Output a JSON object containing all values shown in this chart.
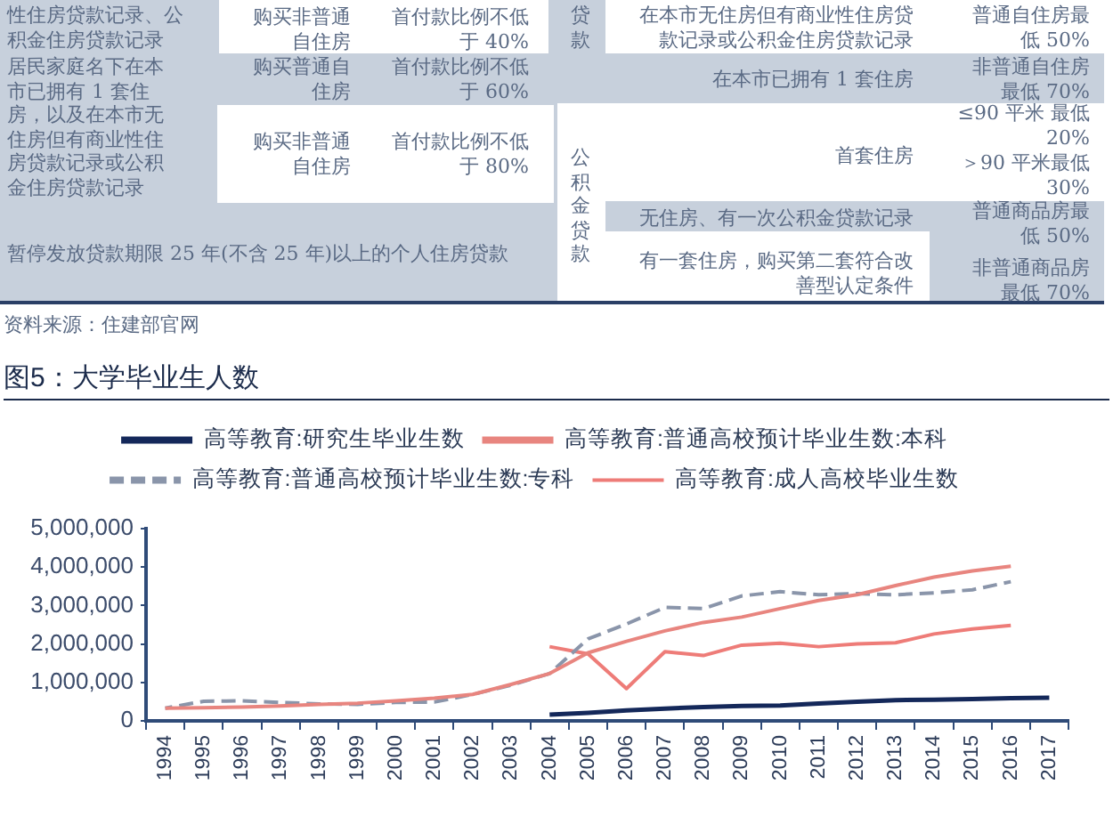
{
  "chart_data": [
    {
      "type": "other",
      "annotations": [
        "性住房贷款记录、公积金住房贷款记录",
        "购买非普通自住房",
        "首付款比例不低于 40%",
        "居民家庭名下在本市已拥有 1 套住房，以及在本市无住房但有商业性住房贷款记录或公积金住房贷款记录",
        "购买普通自住房",
        "首付款比例不低于 60%",
        "购买非普通自住房",
        "首付款比例不低于 80%",
        "暂停发放贷款期限 25 年(不含 25 年)以上的个人住房贷款",
        "贷款",
        "在本市无住房但有商业性住房贷款记录或公积金住房贷款记录",
        "普通自住房最低 50%",
        "在本市已拥有 1 套住房",
        "非普通自住房最低 70%",
        "公积金贷款",
        "首套住房",
        "≤90 平米 最低 20%",
        "＞90 平米最低 30%",
        "无住房、有一次公积金贷款记录",
        "普通商品房最低 50%",
        "有一套住房，购买第二套符合改善型认定条件",
        "非普通商品房最低 70%",
        "资料来源：住建部官网"
      ]
    },
    {
      "type": "line",
      "title": "图5：大学毕业生人数",
      "categories": [
        "1994",
        "1995",
        "1996",
        "1997",
        "1998",
        "1999",
        "2000",
        "2001",
        "2002",
        "2003",
        "2004",
        "2005",
        "2006",
        "2007",
        "2008",
        "2009",
        "2010",
        "2011",
        "2012",
        "2013",
        "2014",
        "2015",
        "2016",
        "2017"
      ],
      "series": [
        {
          "name": "高等教育:研究生毕业生数",
          "color": "#14285a",
          "values": [
            null,
            null,
            null,
            null,
            null,
            null,
            null,
            null,
            null,
            null,
            160000,
            210000,
            270000,
            320000,
            360000,
            390000,
            400000,
            450000,
            500000,
            540000,
            550000,
            570000,
            590000,
            600000
          ]
        },
        {
          "name": "高等教育:普通高校预计毕业生数:本科",
          "color": "#e8857f",
          "values": [
            330000,
            340000,
            360000,
            390000,
            430000,
            460000,
            520000,
            590000,
            690000,
            950000,
            1230000,
            1770000,
            2070000,
            2340000,
            2560000,
            2700000,
            2920000,
            3130000,
            3280000,
            3520000,
            3740000,
            3900000,
            4020000,
            null
          ]
        },
        {
          "name": "高等教育:普通高校预计毕业生数:专科",
          "color": "#8a95aa",
          "line_style": "dashed",
          "values": [
            330000,
            510000,
            520000,
            480000,
            440000,
            430000,
            480000,
            490000,
            690000,
            930000,
            1230000,
            2130000,
            2520000,
            2950000,
            2920000,
            3250000,
            3360000,
            3280000,
            3310000,
            3280000,
            3330000,
            3410000,
            3620000,
            null
          ]
        },
        {
          "name": "高等教育:成人高校毕业生数",
          "color": "#ee7c78",
          "values": [
            null,
            null,
            null,
            null,
            null,
            null,
            null,
            null,
            null,
            null,
            1930000,
            1740000,
            840000,
            1800000,
            1700000,
            1970000,
            2020000,
            1930000,
            2000000,
            2030000,
            2260000,
            2390000,
            2480000,
            null
          ]
        }
      ],
      "ylim": [
        0,
        5000000
      ],
      "yticks": [
        0,
        {
          "value": 1000000,
          "label": "1,000,000"
        },
        {
          "value": 2000000,
          "label": "2,000,000"
        },
        {
          "value": 3000000,
          "label": "3,000,000"
        },
        {
          "value": 4000000,
          "label": "4,000,000"
        },
        {
          "value": 5000000,
          "label": "5,000,000"
        }
      ],
      "legend": "top",
      "grid": false,
      "marker": "none"
    }
  ]
}
